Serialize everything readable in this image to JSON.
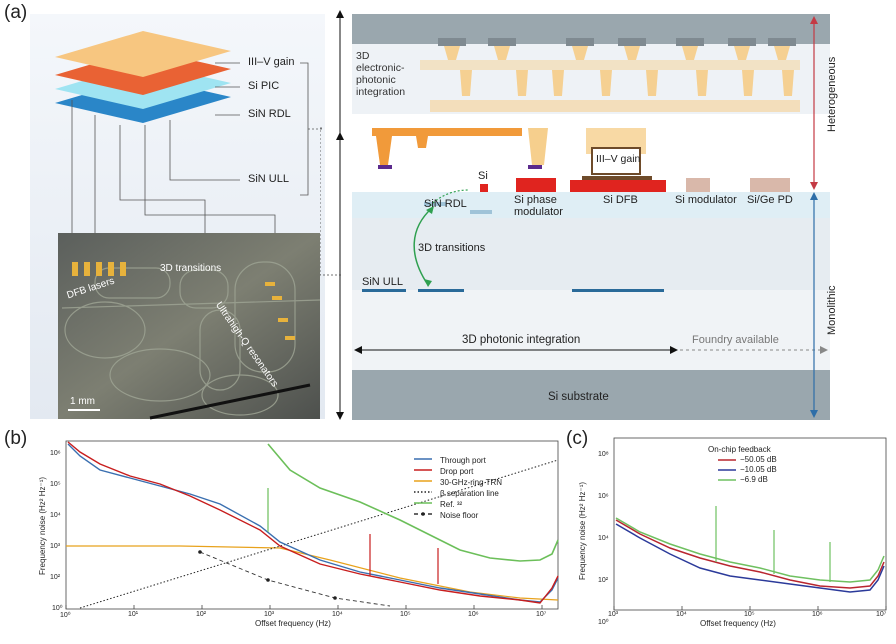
{
  "panel_a": {
    "letter": "(a)",
    "stack_labels": [
      "III–V gain",
      "Si PIC",
      "SiN RDL",
      "SiN ULL"
    ],
    "photo_labels": {
      "dfb": "DFB lasers",
      "transitions": "3D transitions",
      "resonators": "Ultrahigh-Q resonators",
      "scale": "1 mm"
    },
    "cross_section": {
      "electronic_integration": [
        "3D",
        "electronic-",
        "photonic",
        "integration"
      ],
      "si": "Si",
      "sin_rdl": "SiN RDL",
      "transitions": "3D transitions",
      "sin_ull": "SiN ULL",
      "phase_mod": [
        "Si phase",
        "modulator"
      ],
      "gain": "III–V gain",
      "dfb": "Si DFB",
      "modulator": "Si modulator",
      "pd": "Si/Ge PD",
      "photonic_integration": "3D photonic integration",
      "foundry": "Foundry available",
      "substrate": "Si substrate"
    },
    "side_labels": {
      "heterogeneous": "Heterogeneous",
      "monolithic": "Monolithic"
    }
  },
  "panel_b": {
    "letter": "(b)",
    "ylabel": "Frequency noise (Hz² Hz⁻¹)",
    "xlabel": "Offset frequency (Hz)",
    "y_ticks": [
      "10⁰",
      "10²",
      "10³",
      "10⁴",
      "10⁵",
      "10⁶"
    ],
    "x_ticks": [
      "10⁰",
      "10¹",
      "10²",
      "10³",
      "10⁴",
      "10⁵",
      "10⁶",
      "10⁷"
    ],
    "legend": [
      "Through port",
      "Drop port",
      "30-GHz-ring TRN",
      "β separation line",
      "Ref. ³²",
      "Noise floor"
    ]
  },
  "panel_c": {
    "letter": "(c)",
    "ylabel": "Frequency noise (Hz² Hz⁻¹)",
    "xlabel": "Offset frequency (Hz)",
    "y_ticks": [
      "10⁰",
      "10²",
      "10⁴",
      "10⁶",
      "10⁸"
    ],
    "x_ticks": [
      "10³",
      "10⁴",
      "10⁵",
      "10⁶",
      "10⁷"
    ],
    "legend_title": "On-chip feedback",
    "legend": [
      "−50.05 dB",
      "−10.05 dB",
      "−6.9 dB"
    ]
  },
  "colors": {
    "through": "#3a6fb0",
    "drop": "#c81e1e",
    "trn": "#e8a21c",
    "ref": "#6cbf5a",
    "c_blue": "#2b3a9a",
    "c_red": "#b8262f",
    "c_green": "#6fc060"
  }
}
